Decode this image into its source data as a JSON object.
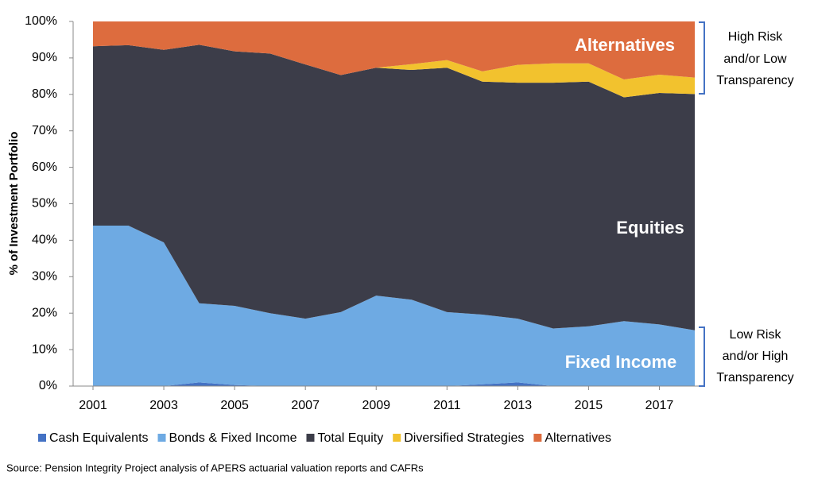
{
  "chart_data": {
    "type": "stacked-area",
    "y_label": "% of Investment Portfolio",
    "x": [
      2001,
      2002,
      2003,
      2004,
      2005,
      2006,
      2007,
      2008,
      2009,
      2010,
      2011,
      2012,
      2013,
      2014,
      2015,
      2016,
      2017,
      2018
    ],
    "xlim": [
      2001,
      2018
    ],
    "xticks": [
      2001,
      2003,
      2005,
      2007,
      2009,
      2011,
      2013,
      2015,
      2017
    ],
    "ylim": [
      0,
      100
    ],
    "yticks": [
      {
        "value": 0,
        "label": "0%"
      },
      {
        "value": 10,
        "label": "10%"
      },
      {
        "value": 20,
        "label": "20%"
      },
      {
        "value": 30,
        "label": "30%"
      },
      {
        "value": 40,
        "label": "40%"
      },
      {
        "value": 50,
        "label": "50%"
      },
      {
        "value": 60,
        "label": "60%"
      },
      {
        "value": 70,
        "label": "70%"
      },
      {
        "value": 80,
        "label": "80%"
      },
      {
        "value": 90,
        "label": "90%"
      },
      {
        "value": 100,
        "label": "100%"
      }
    ],
    "legend": "bottom",
    "series": [
      {
        "name": "Cash Equivalents",
        "color": "#4472c4",
        "values": [
          0,
          0,
          0,
          1,
          0.3,
          0,
          0,
          0,
          0,
          0,
          0,
          0.5,
          1,
          0,
          0,
          0,
          0,
          0
        ]
      },
      {
        "name": "Bonds & Fixed Income",
        "color": "#6eaae3",
        "values": [
          44,
          44,
          39.4,
          21.7,
          21.7,
          20,
          18.5,
          20.3,
          24.8,
          23.7,
          20.3,
          19.1,
          17.5,
          15.8,
          16.4,
          17.8,
          16.9,
          15.3
        ]
      },
      {
        "name": "Total Equity",
        "color": "#3c3d49",
        "values": [
          49.2,
          49.5,
          52.8,
          70.9,
          69.8,
          71.2,
          69.7,
          65,
          62.5,
          63,
          67,
          63.9,
          64.7,
          67.4,
          67.1,
          61.4,
          63.5,
          64.8
        ]
      },
      {
        "name": "Diversified Strategies",
        "color": "#f2c22e",
        "values": [
          0,
          0,
          0,
          0,
          0,
          0,
          0,
          0,
          0,
          1.6,
          2.1,
          2.8,
          4.9,
          5.3,
          5,
          4.9,
          5,
          4.5
        ]
      },
      {
        "name": "Alternatives",
        "color": "#dd6c3e",
        "values": [
          6.8,
          6.5,
          7.8,
          6.4,
          8.2,
          8.8,
          11.8,
          14.7,
          12.7,
          11.7,
          10.6,
          13.7,
          11.9,
          11.5,
          11.5,
          15.9,
          14.6,
          15.4
        ]
      }
    ],
    "annotations": {
      "alternatives": "Alternatives",
      "equities": "Equities",
      "fixed_income": "Fixed Income",
      "high_risk": [
        "High Risk",
        "and/or Low",
        "Transparency"
      ],
      "low_risk": [
        "Low Risk",
        "and/or High",
        "Transparency"
      ]
    },
    "source": "Source: Pension Integrity Project analysis of APERS actuarial valuation reports and CAFRs"
  }
}
